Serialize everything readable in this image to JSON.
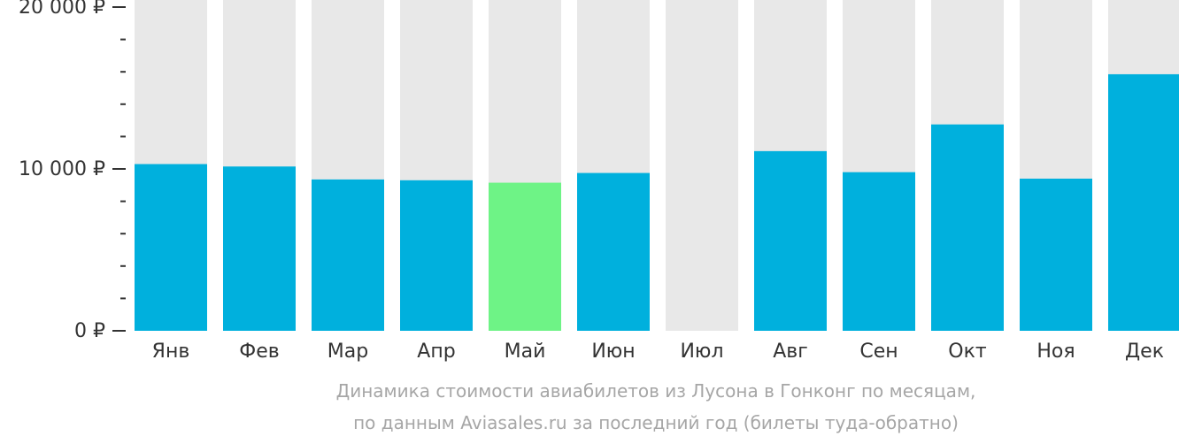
{
  "chart_data": {
    "type": "bar",
    "categories": [
      "Янв",
      "Фев",
      "Мар",
      "Апр",
      "Май",
      "Июн",
      "Июл",
      "Авг",
      "Сен",
      "Окт",
      "Ноя",
      "Дек"
    ],
    "values": [
      10300,
      10150,
      9350,
      9300,
      9150,
      9750,
      null,
      11100,
      9800,
      12750,
      9400,
      15850
    ],
    "highlight_index": 4,
    "ylim": [
      0,
      20000
    ],
    "yticks": [
      {
        "value": 0,
        "label": "0 ₽"
      },
      {
        "value": 10000,
        "label": "10 000 ₽"
      },
      {
        "value": 20000,
        "label": "20 000 ₽"
      }
    ],
    "minor_tick_step": 2000,
    "colors": {
      "bar": "#00b0dd",
      "highlight": "#6ef386",
      "background_bar": "#e8e8e8",
      "axis_text": "#333333",
      "caption": "#a6a6a6"
    }
  },
  "caption": {
    "line1": "Динамика стоимости авиабилетов из Лусона в Гонконг по месяцам,",
    "line2": "по данным Aviasales.ru за последний год (билеты туда-обратно)"
  }
}
